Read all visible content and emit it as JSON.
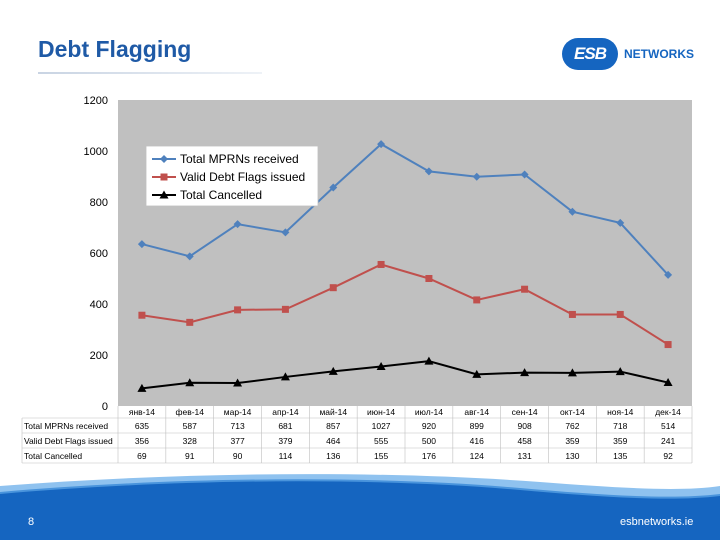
{
  "slide": {
    "title": "Debt Flagging",
    "logo_mark": "ESB",
    "logo_text": "NETWORKS",
    "page_number": "8",
    "footer_url": "esbnetworks.ie"
  },
  "colors": {
    "title": "#1f5aa6",
    "plot_bg": "#c0c0c0",
    "series_blue": "#4f81bd",
    "series_red": "#c0504d",
    "series_black": "#000000"
  },
  "chart_data": {
    "type": "line",
    "title": "",
    "xlabel": "",
    "ylabel": "",
    "ylim": [
      0,
      1200
    ],
    "yticks": [
      "0",
      "200",
      "400",
      "600",
      "800",
      "1000",
      "1200"
    ],
    "grid": false,
    "legend_position": "top-left",
    "categories": [
      "янв-14",
      "фев-14",
      "мар-14",
      "апр-14",
      "май-14",
      "июн-14",
      "июл-14",
      "авг-14",
      "сен-14",
      "окт-14",
      "ноя-14",
      "дек-14"
    ],
    "series": [
      {
        "name": "Total MPRNs received",
        "marker": "diamond",
        "color": "#4f81bd",
        "values": [
          635,
          587,
          713,
          681,
          857,
          1027,
          920,
          899,
          908,
          762,
          718,
          514
        ]
      },
      {
        "name": "Valid Debt Flags issued",
        "marker": "square",
        "color": "#c0504d",
        "values": [
          356,
          328,
          377,
          379,
          464,
          555,
          500,
          416,
          458,
          359,
          359,
          241
        ]
      },
      {
        "name": "Total Cancelled",
        "marker": "triangle",
        "color": "#000000",
        "values": [
          69,
          91,
          90,
          114,
          136,
          155,
          176,
          124,
          131,
          130,
          135,
          92
        ]
      }
    ]
  }
}
